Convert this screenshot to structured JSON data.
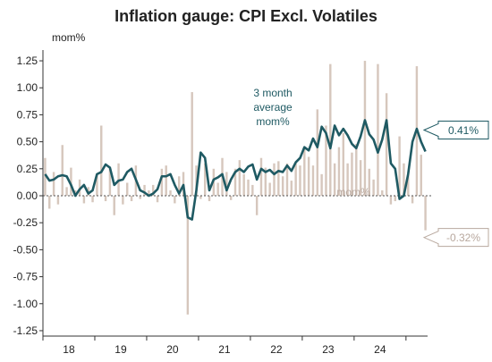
{
  "chart_data": {
    "type": "bar+line",
    "title": "Inflation gauge: CPI Excl. Volatiles",
    "ylabel": "mom%",
    "ylim": [
      -1.3,
      1.3
    ],
    "yticks": [
      "1.25",
      "1.00",
      "0.75",
      "0.50",
      "0.25",
      "0.00",
      "-0.25",
      "-0.50",
      "-0.75",
      "-1.00",
      "-1.25"
    ],
    "xticks": [
      "18",
      "19",
      "20",
      "21",
      "22",
      "23",
      "24"
    ],
    "grid": false,
    "colors": {
      "bars": "#d6c7bd",
      "line": "#1f5a63",
      "text": "#222222",
      "axis": "#333333",
      "last_line_label": "#1f5a63",
      "last_bar_label": "#b8a89e"
    },
    "series": [
      {
        "name": "mom%",
        "kind": "bar",
        "values": [
          0.35,
          -0.12,
          0.22,
          -0.08,
          0.47,
          0.08,
          0.26,
          0.05,
          0.15,
          -0.07,
          0.08,
          -0.06,
          0.2,
          0.65,
          -0.05,
          0.25,
          -0.18,
          0.3,
          -0.08,
          0.12,
          -0.05,
          0.28,
          -0.03,
          0.1,
          0.05,
          0.1,
          -0.06,
          0.25,
          0.28,
          0.05,
          -0.07,
          0.18,
          0.22,
          -1.1,
          0.96,
          0.28,
          -0.03,
          0.3,
          -0.05,
          0.25,
          0.12,
          0.35,
          0.22,
          -0.04,
          0.25,
          0.33,
          0.2,
          0.15,
          0.1,
          -0.18,
          0.35,
          0.26,
          0.12,
          0.3,
          0.32,
          0.18,
          0.3,
          0.14,
          0.3,
          0.28,
          0.45,
          0.36,
          0.28,
          0.8,
          0.2,
          0.65,
          1.22,
          0.3,
          0.45,
          0.58,
          0.3,
          0.4,
          0.48,
          0.33,
          1.25,
          0.25,
          0.15,
          1.22,
          0.05,
          0.95,
          -0.08,
          -0.05,
          0.55,
          0.3,
          0.2,
          -0.07,
          1.2,
          0.38,
          -0.32
        ]
      },
      {
        "name": "3 month average mom%",
        "kind": "line",
        "values": [
          0.2,
          0.14,
          0.15,
          0.18,
          0.19,
          0.18,
          0.1,
          0.0,
          0.06,
          0.1,
          0.02,
          0.05,
          0.2,
          0.22,
          0.29,
          0.26,
          0.1,
          0.14,
          0.15,
          0.22,
          0.25,
          0.15,
          0.05,
          0.03,
          0.0,
          0.02,
          0.06,
          0.18,
          0.18,
          0.2,
          0.1,
          0.02,
          0.1,
          -0.2,
          -0.22,
          0.05,
          0.4,
          0.35,
          0.05,
          0.15,
          0.17,
          0.2,
          0.05,
          0.15,
          0.22,
          0.25,
          0.22,
          0.27,
          0.29,
          0.15,
          0.25,
          0.22,
          0.24,
          0.2,
          0.23,
          0.22,
          0.28,
          0.23,
          0.31,
          0.35,
          0.45,
          0.42,
          0.53,
          0.45,
          0.64,
          0.58,
          0.44,
          0.65,
          0.56,
          0.62,
          0.56,
          0.48,
          0.44,
          0.55,
          0.7,
          0.57,
          0.52,
          0.4,
          0.52,
          0.7,
          0.3,
          0.25,
          -0.03,
          0.0,
          0.2,
          0.5,
          0.62,
          0.5,
          0.41
        ]
      }
    ],
    "annotations": {
      "line_label": [
        "3 month",
        "average",
        "mom%"
      ],
      "bar_label": "mom%",
      "last_line_value": "0.41%",
      "last_bar_value": "-0.32%"
    }
  }
}
